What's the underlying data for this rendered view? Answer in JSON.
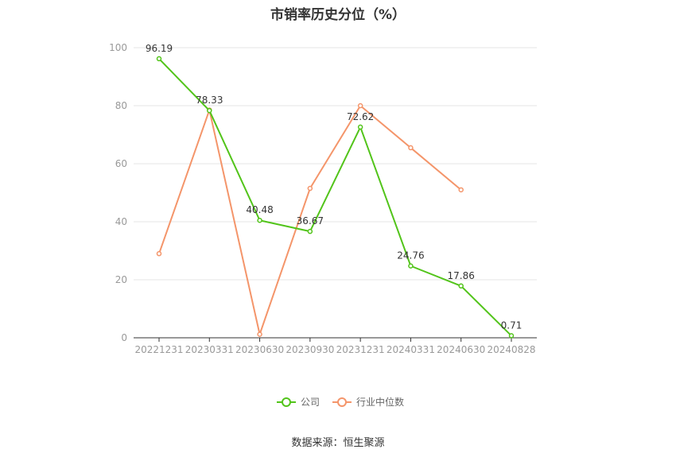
{
  "chart_data": {
    "type": "line",
    "title": "市销率历史分位（%）",
    "categories": [
      "20221231",
      "20230331",
      "20230630",
      "20230930",
      "20231231",
      "20240331",
      "20240630",
      "20240828"
    ],
    "series": [
      {
        "name": "公司",
        "color": "#52c41a",
        "values": [
          96.19,
          78.33,
          40.48,
          36.67,
          72.62,
          24.76,
          17.86,
          0.71
        ],
        "labels": [
          "96.19",
          "78.33",
          "40.48",
          "36.67",
          "72.62",
          "24.76",
          "17.86",
          "0.71"
        ]
      },
      {
        "name": "行业中位数",
        "color": "#f4956a",
        "values": [
          29,
          78.5,
          1.2,
          51.5,
          80,
          65.5,
          51,
          null
        ]
      }
    ],
    "ylim": [
      0,
      100
    ],
    "yticks": [
      0,
      20,
      40,
      60,
      80,
      100
    ],
    "ytick_labels": [
      "0",
      "20",
      "40",
      "60",
      "80",
      "100"
    ],
    "grid": true,
    "legend_position": "bottom-center"
  },
  "footer": {
    "source": "数据来源：恒生聚源"
  }
}
